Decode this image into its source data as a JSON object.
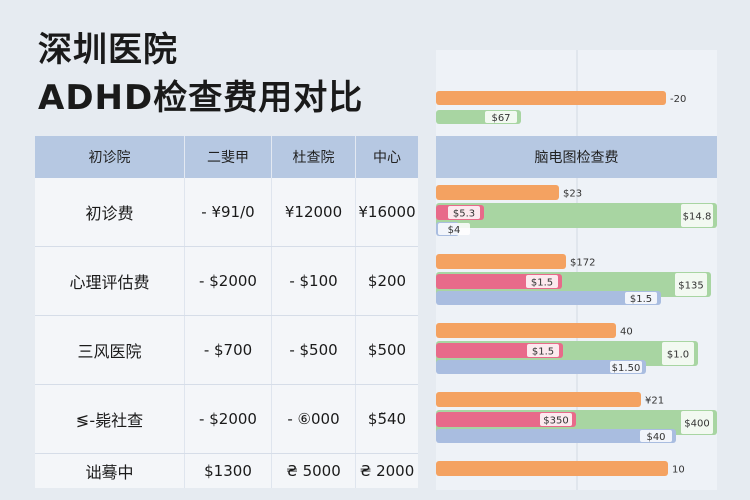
{
  "title": {
    "line1": "深圳医院",
    "line2": "ADHD检查费用对比"
  },
  "table": {
    "headers": [
      "初诊院",
      "二斐甲",
      "杜查院",
      "中心"
    ],
    "rows": [
      [
        "初诊费",
        "- ¥91/0",
        "¥12000",
        "¥16000"
      ],
      [
        "心理评估费",
        "- $2000",
        "- $100",
        "$200"
      ],
      [
        "三风医院",
        "- $700",
        "- $500",
        "$500"
      ],
      [
        "≶-毙社查",
        "- $2000",
        "- ⑥000",
        "$5̈40"
      ],
      [
        "诎蓦中",
        "$1300",
        "₴ 5000",
        "₴ 2000"
      ]
    ]
  },
  "chart_data": {
    "type": "bar",
    "header": "脑电图检查费",
    "colors": {
      "orange": "#f4a261",
      "pink": "#e86a8a",
      "green": "#a8d5a2",
      "blue": "#a9bde0"
    },
    "top_bars": [
      {
        "color": "orange",
        "value": 230,
        "label": "-20"
      },
      {
        "color": "green",
        "value": 85,
        "label": "$67"
      }
    ],
    "groups": [
      {
        "row": 0,
        "bars": [
          {
            "color": "orange",
            "value": 123,
            "label": "$23"
          },
          {
            "color": "green",
            "value": 281,
            "label": "$14.8"
          },
          {
            "color": "pink",
            "value": 48,
            "label": "$5.3"
          },
          {
            "color": "blue",
            "value": 23,
            "label": "$4"
          }
        ]
      },
      {
        "row": 1,
        "bars": [
          {
            "color": "orange",
            "value": 130,
            "label": "$172"
          },
          {
            "color": "green",
            "value": 275,
            "label": "$135"
          },
          {
            "color": "pink",
            "value": 126,
            "label": "$1.5"
          },
          {
            "color": "blue",
            "value": 225,
            "label": "$1.5"
          }
        ]
      },
      {
        "row": 2,
        "bars": [
          {
            "color": "orange",
            "value": 180,
            "label": "40"
          },
          {
            "color": "green",
            "value": 262,
            "label": "$1.0"
          },
          {
            "color": "pink",
            "value": 127,
            "label": "$1.5"
          },
          {
            "color": "blue",
            "value": 210,
            "label": "$1.50"
          }
        ]
      },
      {
        "row": 3,
        "bars": [
          {
            "color": "orange",
            "value": 205,
            "label": "¥21"
          },
          {
            "color": "green",
            "value": 281,
            "label": "$400"
          },
          {
            "color": "pink",
            "value": 140,
            "label": "$350"
          },
          {
            "color": "blue",
            "value": 240,
            "label": "$40"
          }
        ]
      },
      {
        "row": 4,
        "bars": [
          {
            "color": "orange",
            "value": 232,
            "label": "10"
          }
        ]
      }
    ]
  }
}
